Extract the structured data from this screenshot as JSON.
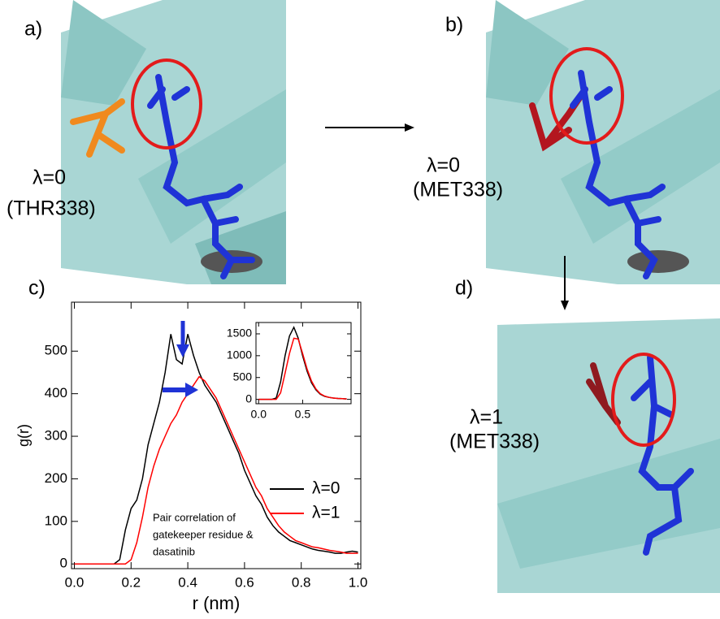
{
  "panels": {
    "a": {
      "label": "a)",
      "lambda": "λ=0",
      "residue": "(THR338)"
    },
    "b": {
      "label": "b)",
      "lambda": "λ=0",
      "residue": "(MET338)"
    },
    "c": {
      "label": "c)"
    },
    "d": {
      "label": "d)",
      "lambda": "λ=1",
      "residue": "(MET338)"
    }
  },
  "chart_data": [
    {
      "type": "line",
      "xlabel": "r (nm)",
      "ylabel": "g(r)",
      "annotation": [
        "Pair correlation of",
        "gatekeeper residue &",
        "dasatinib"
      ],
      "x": [
        0,
        0.02,
        0.04,
        0.06,
        0.08,
        0.1,
        0.12,
        0.14,
        0.16,
        0.18,
        0.2,
        0.22,
        0.24,
        0.26,
        0.28,
        0.3,
        0.32,
        0.34,
        0.36,
        0.38,
        0.4,
        0.42,
        0.44,
        0.46,
        0.48,
        0.5,
        0.52,
        0.54,
        0.56,
        0.58,
        0.6,
        0.62,
        0.64,
        0.66,
        0.68,
        0.7,
        0.72,
        0.74,
        0.76,
        0.78,
        0.8,
        0.82,
        0.84,
        0.86,
        0.88,
        0.9,
        0.92,
        0.94,
        0.96,
        0.98,
        1.0
      ],
      "series": [
        {
          "name": "λ=0",
          "color": "#000000",
          "values": [
            0,
            0,
            0,
            0,
            0,
            0,
            0,
            0,
            10,
            80,
            130,
            150,
            200,
            280,
            330,
            380,
            450,
            540,
            480,
            470,
            540,
            490,
            450,
            420,
            400,
            380,
            350,
            320,
            290,
            260,
            220,
            190,
            160,
            140,
            110,
            90,
            75,
            65,
            55,
            50,
            45,
            40,
            35,
            32,
            30,
            28,
            25,
            25,
            28,
            30,
            28
          ]
        },
        {
          "name": "λ=1",
          "color": "#ff0000",
          "values": [
            0,
            0,
            0,
            0,
            0,
            0,
            0,
            0,
            0,
            0,
            10,
            50,
            110,
            180,
            230,
            270,
            300,
            330,
            350,
            380,
            400,
            420,
            440,
            430,
            410,
            390,
            360,
            330,
            300,
            270,
            240,
            210,
            180,
            160,
            130,
            110,
            90,
            75,
            65,
            55,
            50,
            45,
            40,
            38,
            35,
            32,
            30,
            28,
            25,
            25,
            25
          ]
        }
      ],
      "xlim": [
        -0.01,
        1.01
      ],
      "ylim": [
        -11,
        615
      ],
      "xticks": [
        {
          "value": 0,
          "label": "0.0"
        },
        0.2,
        0.4,
        0.6,
        0.8,
        {
          "value": 1,
          "label": "1.0"
        }
      ],
      "yticks": [
        0,
        100,
        200,
        300,
        400,
        500
      ],
      "legend": "right"
    },
    {
      "type": "line",
      "x": [
        0,
        0.05,
        0.1,
        0.15,
        0.2,
        0.25,
        0.3,
        0.35,
        0.4,
        0.45,
        0.5,
        0.55,
        0.6,
        0.65,
        0.7,
        0.75,
        0.8,
        0.85,
        0.9,
        0.95,
        1.0
      ],
      "series": [
        {
          "color": "#000000",
          "values": [
            0,
            0,
            0,
            0,
            30,
            400,
            1000,
            1450,
            1650,
            1400,
            1000,
            650,
            380,
            220,
            120,
            70,
            45,
            30,
            20,
            15,
            10
          ]
        },
        {
          "color": "#ff0000",
          "values": [
            0,
            0,
            0,
            0,
            0,
            150,
            600,
            1050,
            1400,
            1380,
            1050,
            700,
            420,
            240,
            130,
            75,
            45,
            30,
            20,
            15,
            10
          ]
        }
      ],
      "xlim": [
        -0.03,
        1.05
      ],
      "ylim": [
        -100,
        1760
      ],
      "xticks": [
        {
          "value": 0,
          "label": "0.0"
        },
        0.5
      ],
      "yticks": [
        0,
        500,
        1000,
        1500
      ]
    }
  ]
}
